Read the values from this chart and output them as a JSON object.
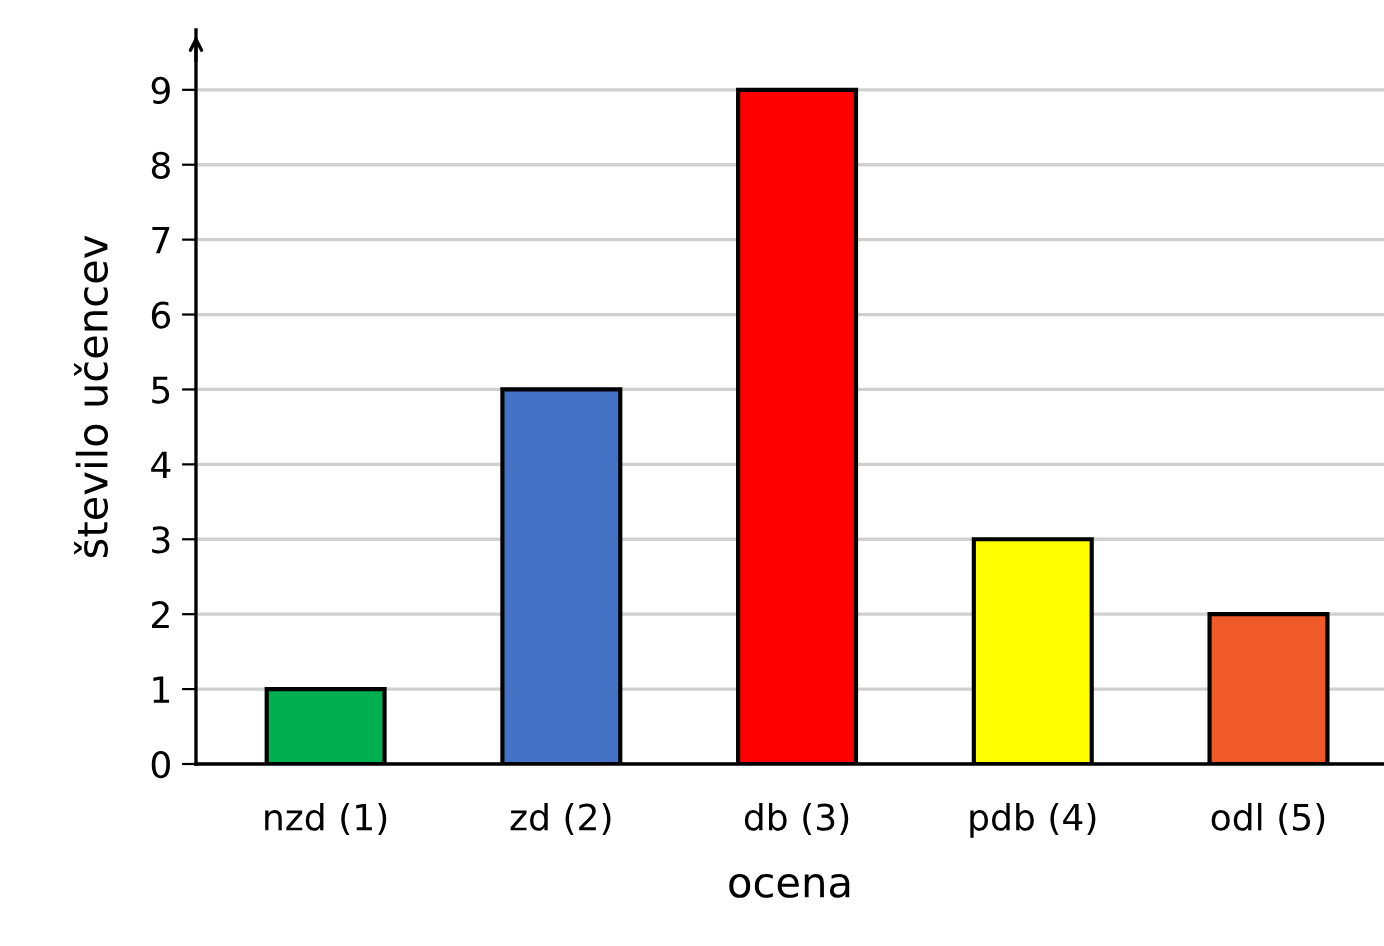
{
  "chart_data": {
    "type": "bar",
    "xlabel": "ocena",
    "ylabel": "število učencev",
    "categories": [
      "nzd (1)",
      "zd (2)",
      "db (3)",
      "pdb (4)",
      "odl (5)"
    ],
    "values": [
      1,
      5,
      9,
      3,
      2
    ],
    "colors": [
      "#00b050",
      "#4472c4",
      "#ff0000",
      "#ffff00",
      "#f05a28"
    ],
    "ylim": [
      0,
      9.8
    ],
    "yticks": [
      0,
      1,
      2,
      3,
      4,
      5,
      6,
      7,
      8,
      9
    ],
    "grid": "y",
    "legend": false
  }
}
